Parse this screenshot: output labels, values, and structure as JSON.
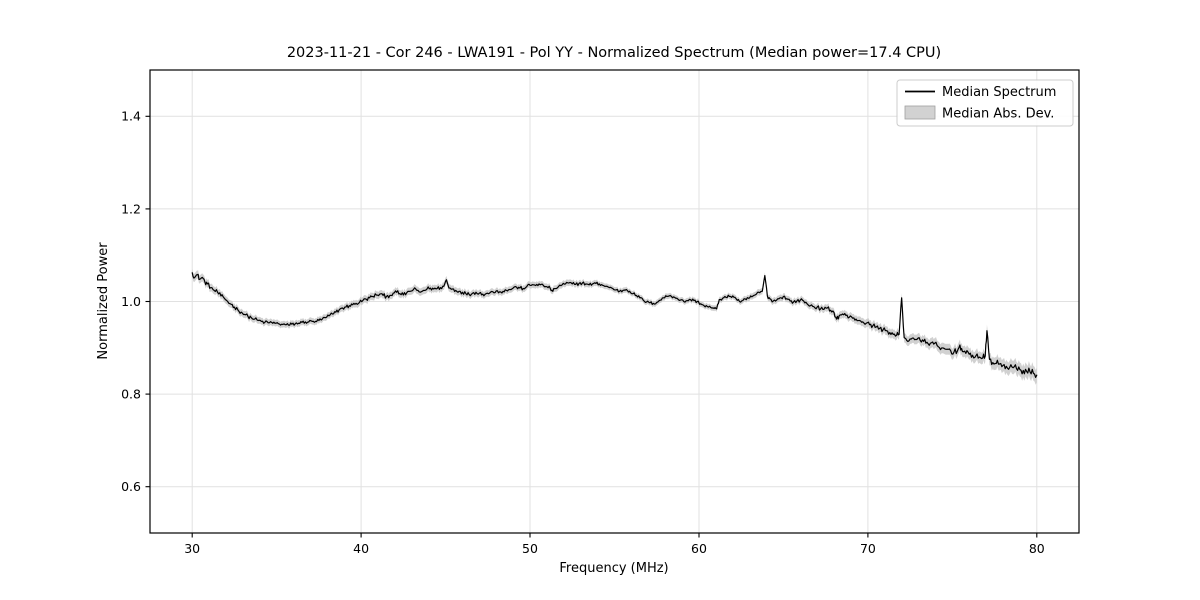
{
  "chart_data": {
    "type": "line",
    "title": "2023-11-21 - Cor 246 - LWA191 - Pol YY - Normalized Spectrum (Median power=17.4 CPU)",
    "xlabel": "Frequency (MHz)",
    "ylabel": "Normalized Power",
    "xlim": [
      27.5,
      82.5
    ],
    "ylim": [
      0.5,
      1.5
    ],
    "xticks": [
      "30",
      "40",
      "50",
      "60",
      "70",
      "80"
    ],
    "xtick_values": [
      30,
      40,
      50,
      60,
      70,
      80
    ],
    "yticks": [
      "0.6",
      "0.8",
      "1.0",
      "1.2",
      "1.4"
    ],
    "ytick_values": [
      0.6,
      0.8,
      1.0,
      1.2,
      1.4
    ],
    "grid": true,
    "legend": {
      "position": "upper right",
      "entries": [
        {
          "label": "Median Spectrum",
          "type": "line"
        },
        {
          "label": "Median Abs. Dev.",
          "type": "patch"
        }
      ]
    },
    "colors": {
      "line": "#000000",
      "band": "#c6c6c6",
      "grid": "#e1e1e1",
      "frame": "#000000",
      "legend_border": "#cccccc",
      "legend_patch_fill": "#d2d2d2",
      "legend_patch_border": "#a0a0a0",
      "background": "#ffffff"
    },
    "series": [
      {
        "name": "Median Spectrum",
        "points": [
          [
            30.0,
            1.062
          ],
          [
            30.15,
            1.052
          ],
          [
            30.3,
            1.058
          ],
          [
            30.45,
            1.048
          ],
          [
            30.6,
            1.052
          ],
          [
            30.75,
            1.042
          ],
          [
            30.9,
            1.038
          ],
          [
            31.1,
            1.03
          ],
          [
            31.3,
            1.024
          ],
          [
            31.5,
            1.02
          ],
          [
            31.7,
            1.012
          ],
          [
            31.9,
            1.007
          ],
          [
            32.1,
            1.0
          ],
          [
            32.3,
            0.994
          ],
          [
            32.5,
            0.988
          ],
          [
            32.7,
            0.982
          ],
          [
            32.9,
            0.977
          ],
          [
            33.1,
            0.972
          ],
          [
            33.3,
            0.968
          ],
          [
            33.5,
            0.965
          ],
          [
            33.7,
            0.962
          ],
          [
            33.9,
            0.959
          ],
          [
            34.1,
            0.957
          ],
          [
            34.3,
            0.955
          ],
          [
            34.5,
            0.954
          ],
          [
            34.7,
            0.955
          ],
          [
            34.9,
            0.953
          ],
          [
            35.1,
            0.952
          ],
          [
            35.3,
            0.951
          ],
          [
            35.5,
            0.95
          ],
          [
            35.7,
            0.949
          ],
          [
            35.9,
            0.951
          ],
          [
            36.1,
            0.952
          ],
          [
            36.3,
            0.953
          ],
          [
            36.5,
            0.955
          ],
          [
            36.7,
            0.956
          ],
          [
            36.9,
            0.956
          ],
          [
            37.1,
            0.957
          ],
          [
            37.3,
            0.957
          ],
          [
            37.5,
            0.959
          ],
          [
            37.7,
            0.962
          ],
          [
            37.9,
            0.965
          ],
          [
            38.1,
            0.969
          ],
          [
            38.3,
            0.973
          ],
          [
            38.5,
            0.977
          ],
          [
            38.7,
            0.982
          ],
          [
            38.9,
            0.986
          ],
          [
            39.1,
            0.988
          ],
          [
            39.3,
            0.991
          ],
          [
            39.5,
            0.993
          ],
          [
            39.7,
            0.996
          ],
          [
            39.9,
            0.998
          ],
          [
            40.1,
            1.002
          ],
          [
            40.3,
            1.005
          ],
          [
            40.5,
            1.008
          ],
          [
            40.7,
            1.011
          ],
          [
            40.9,
            1.014
          ],
          [
            41.1,
            1.016
          ],
          [
            41.3,
            1.013
          ],
          [
            41.5,
            1.011
          ],
          [
            41.7,
            1.013
          ],
          [
            41.9,
            1.018
          ],
          [
            42.1,
            1.02
          ],
          [
            42.3,
            1.017
          ],
          [
            42.5,
            1.014
          ],
          [
            42.7,
            1.019
          ],
          [
            42.9,
            1.022
          ],
          [
            43.1,
            1.026
          ],
          [
            43.3,
            1.024
          ],
          [
            43.5,
            1.02
          ],
          [
            43.7,
            1.024
          ],
          [
            43.9,
            1.027
          ],
          [
            44.1,
            1.029
          ],
          [
            44.3,
            1.027
          ],
          [
            44.5,
            1.028
          ],
          [
            44.7,
            1.03
          ],
          [
            44.9,
            1.033
          ],
          [
            45.05,
            1.047
          ],
          [
            45.2,
            1.029
          ],
          [
            45.4,
            1.027
          ],
          [
            45.6,
            1.024
          ],
          [
            45.8,
            1.022
          ],
          [
            46.0,
            1.02
          ],
          [
            46.2,
            1.017
          ],
          [
            46.4,
            1.015
          ],
          [
            46.6,
            1.018
          ],
          [
            46.8,
            1.02
          ],
          [
            47.0,
            1.018
          ],
          [
            47.2,
            1.016
          ],
          [
            47.4,
            1.017
          ],
          [
            47.6,
            1.018
          ],
          [
            47.8,
            1.021
          ],
          [
            48.0,
            1.023
          ],
          [
            48.2,
            1.021
          ],
          [
            48.4,
            1.022
          ],
          [
            48.6,
            1.024
          ],
          [
            48.8,
            1.026
          ],
          [
            49.0,
            1.029
          ],
          [
            49.2,
            1.031
          ],
          [
            49.4,
            1.029
          ],
          [
            49.6,
            1.028
          ],
          [
            49.8,
            1.032
          ],
          [
            50.0,
            1.035
          ],
          [
            50.2,
            1.036
          ],
          [
            50.4,
            1.037
          ],
          [
            50.6,
            1.036
          ],
          [
            50.8,
            1.034
          ],
          [
            51.0,
            1.032
          ],
          [
            51.2,
            1.028
          ],
          [
            51.35,
            1.022
          ],
          [
            51.5,
            1.028
          ],
          [
            51.7,
            1.033
          ],
          [
            51.9,
            1.036
          ],
          [
            52.1,
            1.038
          ],
          [
            52.3,
            1.04
          ],
          [
            52.5,
            1.038
          ],
          [
            52.7,
            1.037
          ],
          [
            52.9,
            1.039
          ],
          [
            53.1,
            1.04
          ],
          [
            53.3,
            1.038
          ],
          [
            53.5,
            1.036
          ],
          [
            53.7,
            1.038
          ],
          [
            53.9,
            1.039
          ],
          [
            54.1,
            1.038
          ],
          [
            54.3,
            1.035
          ],
          [
            54.5,
            1.033
          ],
          [
            54.7,
            1.03
          ],
          [
            54.9,
            1.028
          ],
          [
            55.1,
            1.025
          ],
          [
            55.3,
            1.022
          ],
          [
            55.5,
            1.024
          ],
          [
            55.7,
            1.026
          ],
          [
            55.9,
            1.022
          ],
          [
            56.1,
            1.017
          ],
          [
            56.3,
            1.013
          ],
          [
            56.5,
            1.008
          ],
          [
            56.7,
            1.003
          ],
          [
            56.9,
            0.999
          ],
          [
            57.1,
            0.997
          ],
          [
            57.3,
            0.996
          ],
          [
            57.5,
            0.998
          ],
          [
            57.7,
            1.003
          ],
          [
            57.9,
            1.008
          ],
          [
            58.1,
            1.011
          ],
          [
            58.3,
            1.013
          ],
          [
            58.5,
            1.01
          ],
          [
            58.7,
            1.007
          ],
          [
            58.9,
            1.003
          ],
          [
            59.1,
            1.0
          ],
          [
            59.3,
            1.002
          ],
          [
            59.5,
            1.004
          ],
          [
            59.7,
            1.002
          ],
          [
            59.9,
            1.0
          ],
          [
            60.1,
            0.995
          ],
          [
            60.3,
            0.991
          ],
          [
            60.5,
            0.989
          ],
          [
            60.7,
            0.987
          ],
          [
            60.9,
            0.985
          ],
          [
            61.05,
            0.984
          ],
          [
            61.2,
            1.004
          ],
          [
            61.4,
            1.007
          ],
          [
            61.6,
            1.009
          ],
          [
            61.8,
            1.011
          ],
          [
            62.0,
            1.012
          ],
          [
            62.2,
            1.006
          ],
          [
            62.4,
            1.0
          ],
          [
            62.6,
            1.002
          ],
          [
            62.8,
            1.004
          ],
          [
            63.0,
            1.008
          ],
          [
            63.2,
            1.012
          ],
          [
            63.4,
            1.016
          ],
          [
            63.6,
            1.019
          ],
          [
            63.75,
            1.022
          ],
          [
            63.9,
            1.056
          ],
          [
            64.05,
            1.012
          ],
          [
            64.2,
            1.006
          ],
          [
            64.4,
            1.001
          ],
          [
            64.6,
            1.003
          ],
          [
            64.8,
            1.008
          ],
          [
            65.0,
            1.011
          ],
          [
            65.2,
            1.006
          ],
          [
            65.4,
            1.001
          ],
          [
            65.6,
            0.999
          ],
          [
            65.8,
            1.001
          ],
          [
            66.0,
            1.003
          ],
          [
            66.2,
            1.001
          ],
          [
            66.4,
            0.995
          ],
          [
            66.6,
            0.991
          ],
          [
            66.8,
            0.989
          ],
          [
            67.0,
            0.988
          ],
          [
            67.2,
            0.984
          ],
          [
            67.4,
            0.983
          ],
          [
            67.6,
            0.986
          ],
          [
            67.8,
            0.981
          ],
          [
            68.0,
            0.976
          ],
          [
            68.15,
            0.962
          ],
          [
            68.3,
            0.969
          ],
          [
            68.5,
            0.973
          ],
          [
            68.7,
            0.97
          ],
          [
            68.9,
            0.966
          ],
          [
            69.1,
            0.964
          ],
          [
            69.3,
            0.962
          ],
          [
            69.5,
            0.959
          ],
          [
            69.7,
            0.956
          ],
          [
            69.9,
            0.953
          ],
          [
            70.1,
            0.95
          ],
          [
            70.3,
            0.948
          ],
          [
            70.5,
            0.945
          ],
          [
            70.7,
            0.942
          ],
          [
            70.9,
            0.939
          ],
          [
            71.1,
            0.937
          ],
          [
            71.3,
            0.933
          ],
          [
            71.5,
            0.929
          ],
          [
            71.7,
            0.927
          ],
          [
            71.85,
            0.929
          ],
          [
            72.0,
            1.008
          ],
          [
            72.15,
            0.922
          ],
          [
            72.3,
            0.916
          ],
          [
            72.5,
            0.919
          ],
          [
            72.7,
            0.921
          ],
          [
            72.9,
            0.918
          ],
          [
            73.1,
            0.916
          ],
          [
            73.3,
            0.914
          ],
          [
            73.5,
            0.912
          ],
          [
            73.7,
            0.91
          ],
          [
            73.9,
            0.908
          ],
          [
            74.1,
            0.905
          ],
          [
            74.3,
            0.896
          ],
          [
            74.5,
            0.899
          ],
          [
            74.7,
            0.897
          ],
          [
            74.9,
            0.894
          ],
          [
            75.1,
            0.891
          ],
          [
            75.3,
            0.893
          ],
          [
            75.45,
            0.906
          ],
          [
            75.6,
            0.892
          ],
          [
            75.8,
            0.888
          ],
          [
            76.0,
            0.886
          ],
          [
            76.2,
            0.884
          ],
          [
            76.4,
            0.883
          ],
          [
            76.6,
            0.88
          ],
          [
            76.8,
            0.878
          ],
          [
            76.95,
            0.882
          ],
          [
            77.05,
            0.937
          ],
          [
            77.2,
            0.875
          ],
          [
            77.4,
            0.868
          ],
          [
            77.6,
            0.866
          ],
          [
            77.8,
            0.865
          ],
          [
            78.0,
            0.862
          ],
          [
            78.2,
            0.86
          ],
          [
            78.4,
            0.858
          ],
          [
            78.6,
            0.857
          ],
          [
            78.8,
            0.855
          ],
          [
            79.0,
            0.853
          ],
          [
            79.2,
            0.851
          ],
          [
            79.4,
            0.849
          ],
          [
            79.6,
            0.848
          ],
          [
            79.8,
            0.845
          ],
          [
            80.0,
            0.841
          ]
        ]
      }
    ],
    "band": {
      "name": "Median Abs. Dev.",
      "half_width_points": [
        [
          30,
          0.009
        ],
        [
          32,
          0.008
        ],
        [
          35,
          0.007
        ],
        [
          38,
          0.007
        ],
        [
          40,
          0.008
        ],
        [
          45,
          0.008
        ],
        [
          48,
          0.007
        ],
        [
          52,
          0.007
        ],
        [
          55,
          0.006
        ],
        [
          58,
          0.006
        ],
        [
          62,
          0.006
        ],
        [
          64,
          0.007
        ],
        [
          66,
          0.007
        ],
        [
          68,
          0.008
        ],
        [
          70,
          0.009
        ],
        [
          72,
          0.01
        ],
        [
          74,
          0.011
        ],
        [
          75,
          0.012
        ],
        [
          76,
          0.012
        ],
        [
          77,
          0.013
        ],
        [
          78,
          0.014
        ],
        [
          79,
          0.015
        ],
        [
          80,
          0.016
        ]
      ]
    }
  }
}
